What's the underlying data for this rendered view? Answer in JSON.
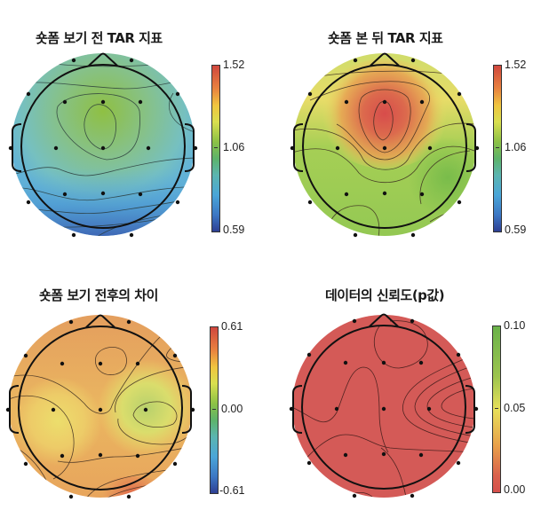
{
  "chart_data": [
    {
      "type": "heatmap",
      "subtype": "eeg-topomap",
      "title": "숏폼 보기 전 TAR 지표",
      "colorbar": {
        "min": 0.59,
        "mid": 1.06,
        "max": 1.52,
        "tick_labels": [
          "1.52",
          "1.06",
          "0.59"
        ],
        "colormap": "jet"
      },
      "electrodes": 18,
      "pattern": "frontal-central maximum (~1.2), posterior minimum (~0.7)",
      "colors": {
        "center": "#8dbf4a",
        "mid": "#7bc3b7",
        "edge": "#4a8ccf",
        "low": "#3557a8"
      }
    },
    {
      "type": "heatmap",
      "subtype": "eeg-topomap",
      "title": "숏폼 본 뒤 TAR 지표",
      "colorbar": {
        "min": 0.59,
        "mid": 1.06,
        "max": 1.52,
        "tick_labels": [
          "1.52",
          "1.06",
          "0.59"
        ],
        "colormap": "jet"
      },
      "electrodes": 18,
      "pattern": "frontal-central maximum (~1.45), elsewhere ~1.05-1.15",
      "colors": {
        "center": "#d9524a",
        "mid": "#e8a050",
        "edge": "#eadf6a",
        "low": "#7fbf4e"
      }
    },
    {
      "type": "heatmap",
      "subtype": "eeg-topomap",
      "title": "숏폼 보기 전후의 차이",
      "colorbar": {
        "min": -0.61,
        "mid": 0.0,
        "max": 0.61,
        "tick_labels": [
          "0.61",
          "0.00",
          "-0.61"
        ],
        "colormap": "jet"
      },
      "electrodes": 18,
      "pattern": "positive everywhere (~0.3-0.5), lowest at right temporal (~0.1)",
      "colors": {
        "center": "#e49a5a",
        "mid": "#ecc864",
        "edge": "#e9df6c",
        "low": "#b6d069"
      }
    },
    {
      "type": "heatmap",
      "subtype": "eeg-topomap",
      "title": "데이터의 신뢰도(p값)",
      "colorbar": {
        "min": 0.0,
        "mid": 0.05,
        "max": 0.1,
        "tick_labels": [
          "0.10",
          "0.05",
          "0.00"
        ],
        "colormap": "red-yellow-green"
      },
      "electrodes": 18,
      "pattern": "p < 0.01 across entire scalp",
      "colors": {
        "center": "#d45a57",
        "mid": "#d45a57",
        "edge": "#d45a57",
        "low": "#d45a57"
      }
    }
  ]
}
